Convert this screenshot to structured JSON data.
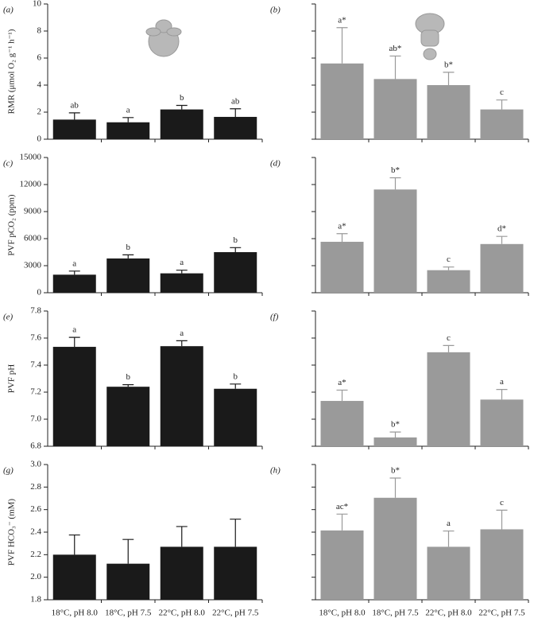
{
  "chart_data": [
    {
      "type": "bar",
      "panel": "(a)",
      "ylabel": "RMR (μmol O₂ g⁻¹ h⁻¹)",
      "categories": [
        null,
        null,
        null,
        null
      ],
      "values": [
        1.45,
        1.25,
        2.2,
        1.65
      ],
      "errors": [
        0.5,
        0.35,
        0.3,
        0.6
      ],
      "annotations": [
        "ab",
        "a",
        "b",
        "ab"
      ],
      "color": "#1a1a1a",
      "ylim": [
        0,
        10
      ],
      "yticks": [
        0,
        2,
        4,
        6,
        8,
        10
      ]
    },
    {
      "type": "bar",
      "panel": "(b)",
      "categories": [
        null,
        null,
        null,
        null
      ],
      "values": [
        5.6,
        4.45,
        4.0,
        2.2
      ],
      "errors": [
        2.65,
        1.7,
        0.95,
        0.7
      ],
      "annotations": [
        "a*",
        "ab*",
        "b*",
        "c"
      ],
      "color": "#9a9a9a",
      "ylim": [
        0,
        10
      ],
      "yticks": [
        0,
        2,
        4,
        6,
        8,
        10
      ],
      "tick_labels": false
    },
    {
      "type": "bar",
      "panel": "(c)",
      "ylabel": "PVF pCO₂ (ppm)",
      "categories": [
        null,
        null,
        null,
        null
      ],
      "values": [
        2000,
        3800,
        2150,
        4500
      ],
      "errors": [
        400,
        400,
        350,
        500
      ],
      "annotations": [
        "a",
        "b",
        "a",
        "b"
      ],
      "color": "#1a1a1a",
      "ylim": [
        0,
        15000
      ],
      "yticks": [
        0,
        3000,
        6000,
        9000,
        12000,
        15000
      ]
    },
    {
      "type": "bar",
      "panel": "(d)",
      "categories": [
        null,
        null,
        null,
        null
      ],
      "values": [
        5650,
        11450,
        2500,
        5400
      ],
      "errors": [
        900,
        1300,
        350,
        850
      ],
      "annotations": [
        "a*",
        "b*",
        "c",
        "d*"
      ],
      "color": "#9a9a9a",
      "ylim": [
        0,
        15000
      ],
      "yticks": [
        0,
        3000,
        6000,
        9000,
        12000,
        15000
      ],
      "tick_labels": false
    },
    {
      "type": "bar",
      "panel": "(e)",
      "ylabel": "PVF pH",
      "categories": [
        null,
        null,
        null,
        null
      ],
      "values": [
        7.535,
        7.24,
        7.54,
        7.225
      ],
      "errors": [
        0.07,
        0.015,
        0.04,
        0.035
      ],
      "annotations": [
        "a",
        "b",
        "a",
        "b"
      ],
      "color": "#1a1a1a",
      "ylim": [
        6.8,
        7.8
      ],
      "yticks": [
        6.8,
        {
          "value": 7,
          "label": "7.0"
        },
        7.2,
        7.4,
        7.6,
        7.8
      ]
    },
    {
      "type": "bar",
      "panel": "(f)",
      "categories": [
        null,
        null,
        null,
        null
      ],
      "values": [
        7.135,
        6.865,
        7.495,
        7.145
      ],
      "errors": [
        0.08,
        0.04,
        0.05,
        0.075
      ],
      "annotations": [
        "a*",
        "b*",
        "c",
        "a"
      ],
      "color": "#9a9a9a",
      "ylim": [
        6.8,
        7.8
      ],
      "yticks": [
        6.8,
        7,
        7.2,
        7.4,
        7.6,
        7.8
      ],
      "tick_labels": false
    },
    {
      "type": "bar",
      "panel": "(g)",
      "ylabel": "PVF HCO₃⁻ (mM)",
      "categories": [
        "18°C, pH 8.0",
        "18°C, pH 7.5",
        "22°C, pH 8.0",
        "22°C, pH 7.5"
      ],
      "values": [
        2.2,
        2.12,
        2.27,
        2.27
      ],
      "errors": [
        0.175,
        0.215,
        0.18,
        0.245
      ],
      "color": "#1a1a1a",
      "ylim": [
        1.8,
        3.0
      ],
      "yticks": [
        1.8,
        {
          "value": 2,
          "label": "2.0"
        },
        2.2,
        2.4,
        2.6,
        2.8,
        {
          "value": 3,
          "label": "3.0"
        }
      ]
    },
    {
      "type": "bar",
      "panel": "(h)",
      "categories": [
        "18°C, pH 8.0",
        "18°C, pH 7.5",
        "22°C, pH 8.0",
        "22°C, pH 7.5"
      ],
      "values": [
        2.415,
        2.705,
        2.27,
        2.425
      ],
      "errors": [
        0.145,
        0.175,
        0.14,
        0.17
      ],
      "annotations": [
        "ac*",
        "b*",
        "a",
        "c"
      ],
      "color": "#9a9a9a",
      "ylim": [
        1.8,
        3.0
      ],
      "yticks": [
        1.8,
        2,
        2.2,
        2.4,
        2.6,
        2.8,
        3
      ],
      "tick_labels": false
    }
  ]
}
